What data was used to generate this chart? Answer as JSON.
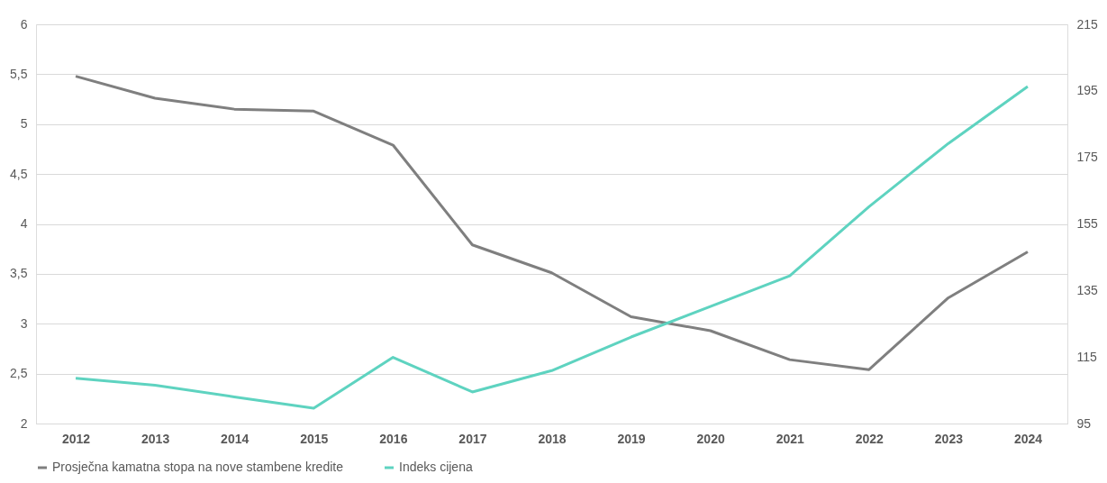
{
  "chart_data": {
    "type": "line",
    "categories": [
      "2012",
      "2013",
      "2014",
      "2015",
      "2016",
      "2017",
      "2018",
      "2019",
      "2020",
      "2021",
      "2022",
      "2023",
      "2024"
    ],
    "series": [
      {
        "name": "Prosječna kamatna stopa na nove stambene kredite",
        "color": "#7f7f7f",
        "values": [
          5.48,
          5.26,
          5.15,
          5.13,
          4.79,
          3.79,
          3.51,
          3.07,
          2.93,
          2.64,
          2.54,
          3.26,
          3.72
        ]
      },
      {
        "name": "Indeks cijena",
        "color": "#5ed3c0",
        "axis": "y2",
        "values": [
          108.6,
          106.5,
          103,
          99.6,
          114.9,
          104.5,
          110.9,
          121,
          130.2,
          139.4,
          160.2,
          179.2,
          196.3
        ]
      }
    ],
    "ylim": [
      2,
      6
    ],
    "yticks": [
      2,
      {
        "value": 2.5,
        "label": "2,5"
      },
      3,
      {
        "value": 3.5,
        "label": "3,5"
      },
      4,
      {
        "value": 4.5,
        "label": "4,5"
      },
      5,
      {
        "value": 5.5,
        "label": "5,5"
      },
      6
    ],
    "y2lim": [
      95,
      215
    ],
    "y2ticks": [
      95,
      115,
      135,
      155,
      175,
      195,
      215
    ],
    "grid": "y",
    "legend": "bottom",
    "marker": "none",
    "line_style": "solid"
  }
}
